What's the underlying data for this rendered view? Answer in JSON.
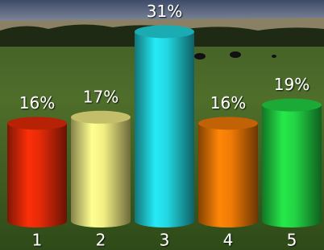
{
  "chart_data": {
    "type": "bar",
    "categories": [
      "1",
      "2",
      "3",
      "4",
      "5"
    ],
    "values": [
      16,
      17,
      31,
      16,
      19
    ],
    "value_labels": [
      "16%",
      "17%",
      "31%",
      "16%",
      "19%"
    ],
    "colors": [
      "#e52a08",
      "#f2ee84",
      "#22d6e0",
      "#f07a06",
      "#22d444"
    ]
  }
}
